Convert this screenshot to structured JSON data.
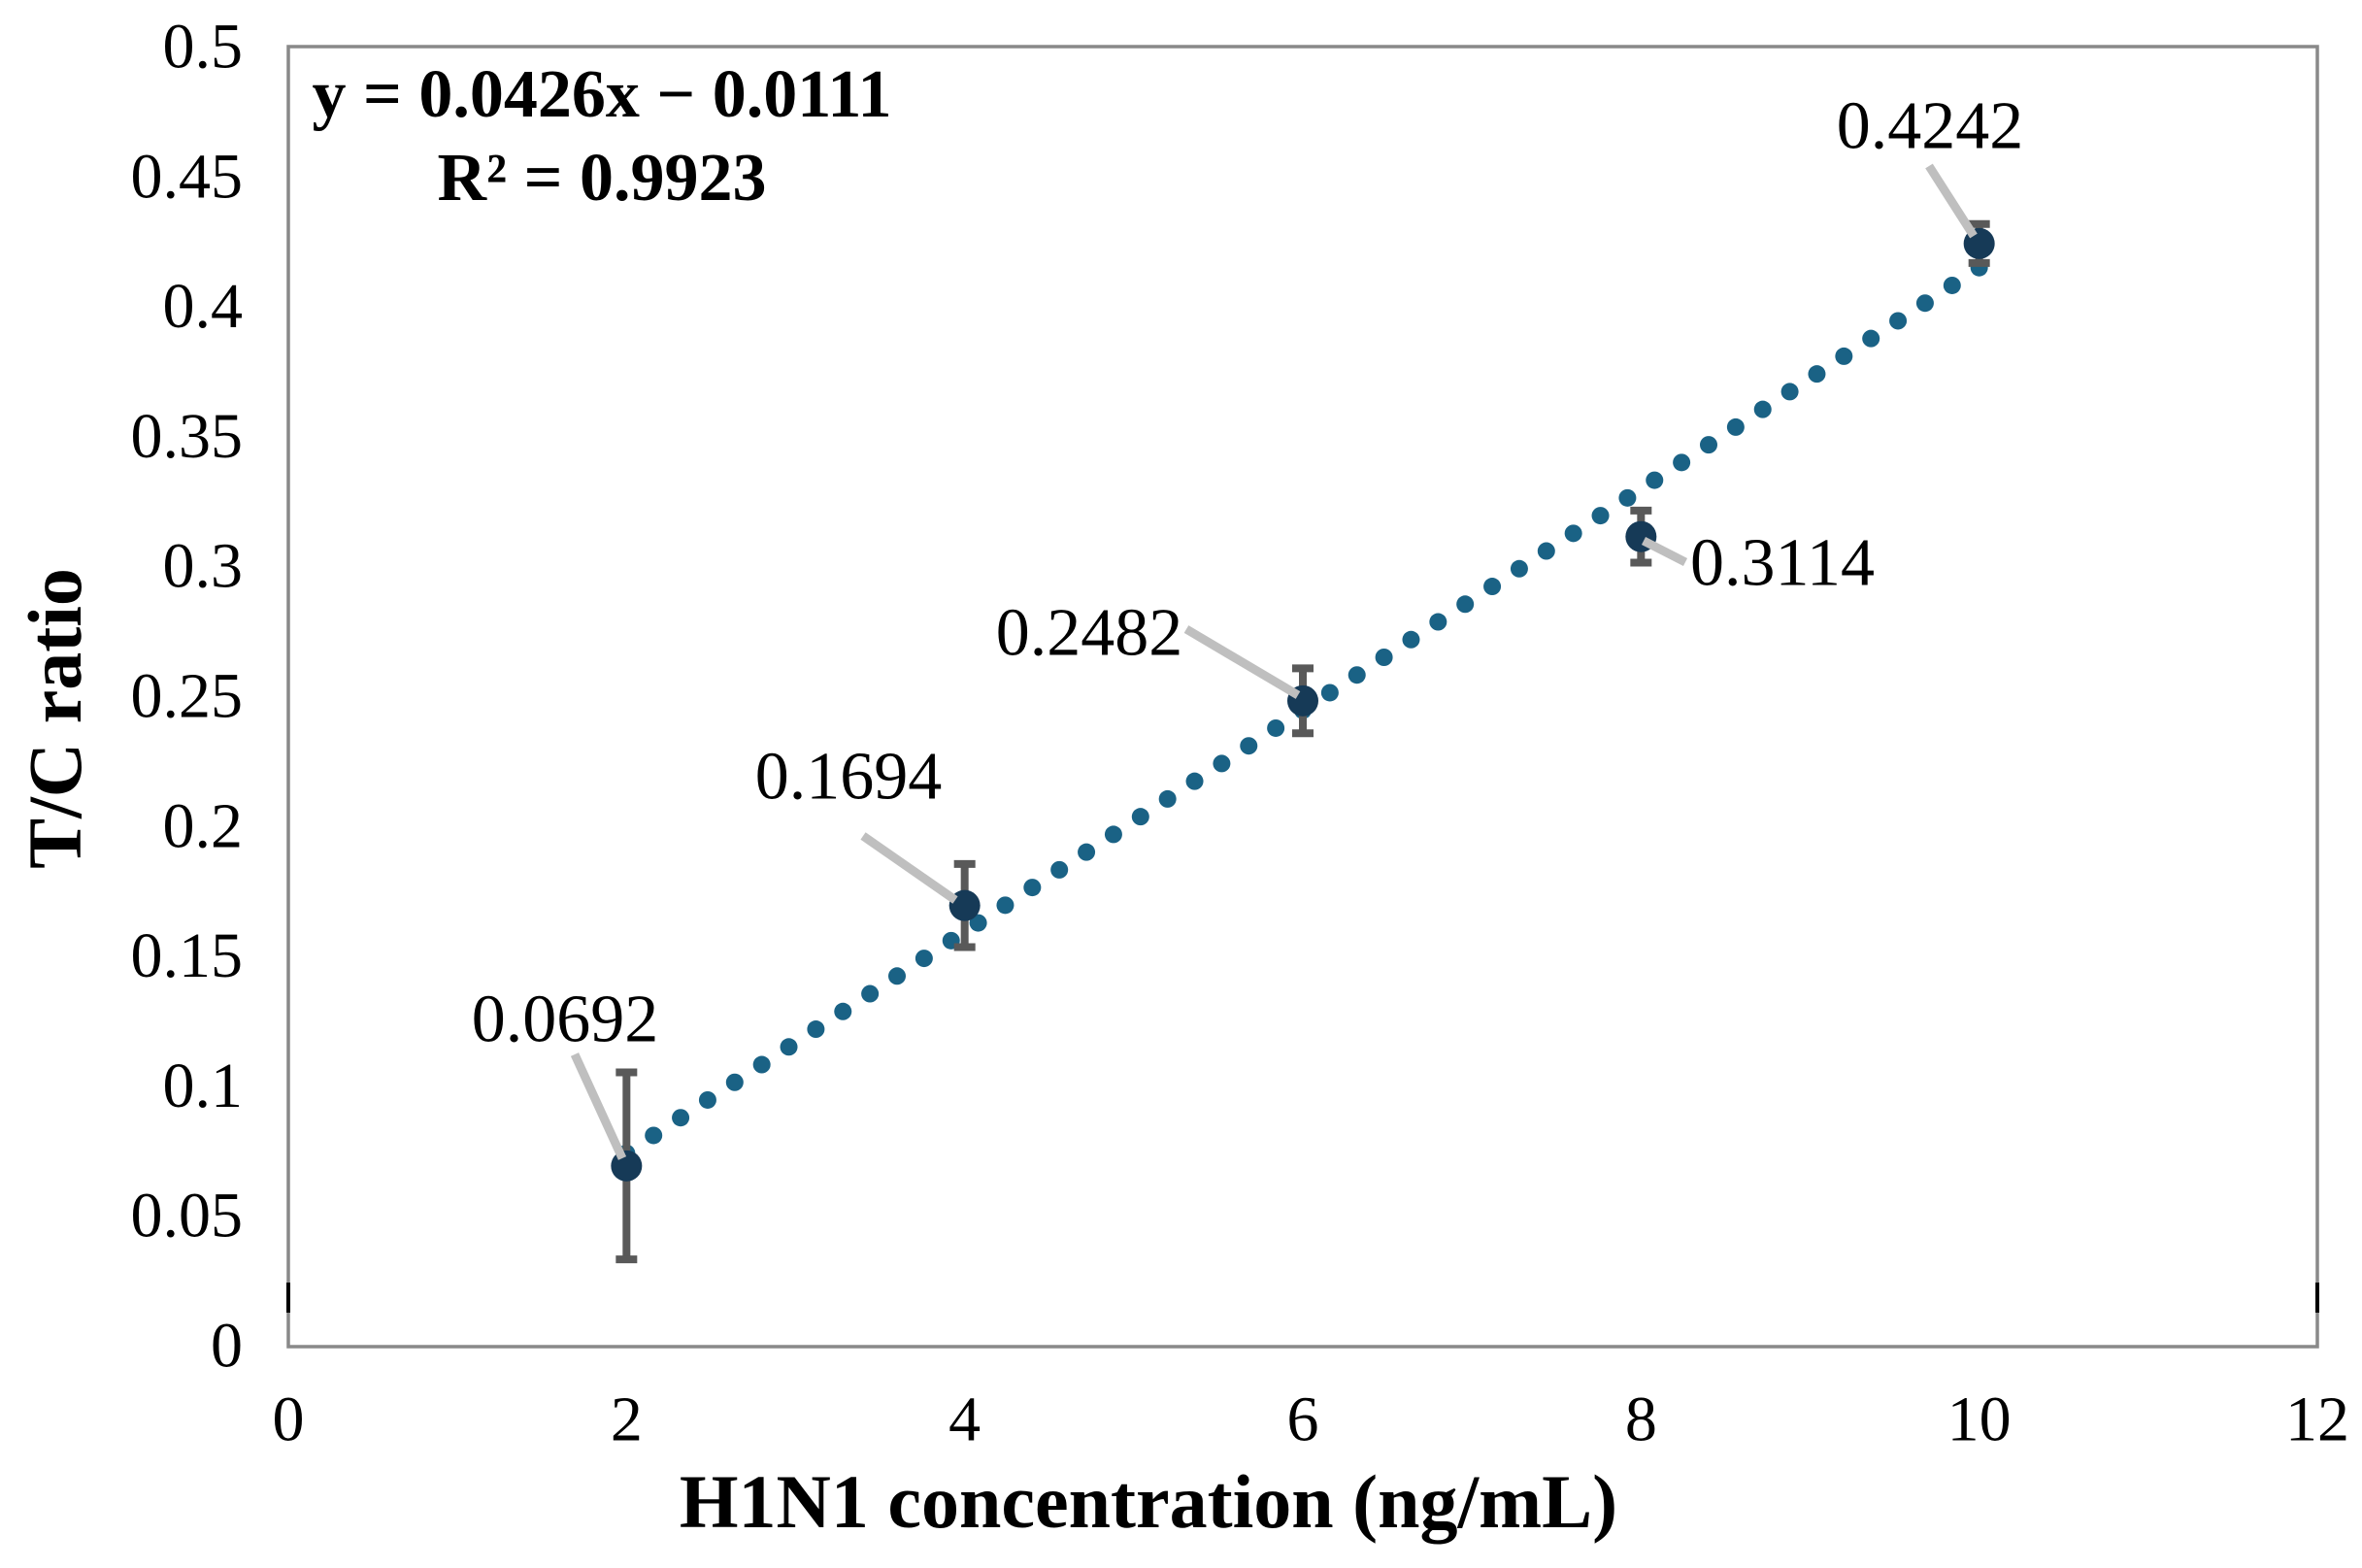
{
  "chart_data": {
    "type": "scatter",
    "title": "",
    "xlabel": "H1N1 concentration (ng/mL)",
    "ylabel": "T/C ratio",
    "xlim": [
      0,
      12
    ],
    "ylim": [
      0,
      0.5
    ],
    "xticks": [
      0,
      2,
      4,
      6,
      8,
      10,
      12
    ],
    "xtick_labels": [
      "0",
      "2",
      "4",
      "6",
      "8",
      "10",
      "12"
    ],
    "yticks": [
      0,
      0.05,
      0.1,
      0.15,
      0.2,
      0.25,
      0.3,
      0.35,
      0.4,
      0.45,
      0.5
    ],
    "ytick_labels": [
      "0",
      "0.05",
      "0.1",
      "0.15",
      "0.2",
      "0.25",
      "0.3",
      "0.35",
      "0.4",
      "0.45",
      "0.5"
    ],
    "grid": false,
    "legend": "none",
    "equation": {
      "line1": "y = 0.0426x − 0.0111",
      "line2": "R² = 0.9923"
    },
    "series": [
      {
        "name": "T/C ratio",
        "marker": "circle",
        "points": [
          {
            "x": 2,
            "y": 0.0692,
            "label": "0.0692",
            "error": 0.036
          },
          {
            "x": 4,
            "y": 0.1694,
            "label": "0.1694",
            "error": 0.016
          },
          {
            "x": 6,
            "y": 0.2482,
            "label": "0.2482",
            "error": 0.0125
          },
          {
            "x": 8,
            "y": 0.3114,
            "label": "0.3114",
            "error": 0.01
          },
          {
            "x": 10,
            "y": 0.4242,
            "label": "0.4242",
            "error": 0.0075
          }
        ]
      }
    ],
    "trendline": {
      "type": "linear",
      "slope": 0.0426,
      "intercept": -0.0111,
      "x_start": 2,
      "x_end": 10,
      "style": "dotted"
    },
    "colors": {
      "trend_dot": "#1A6285",
      "marker": "#163A57",
      "error_bar": "#595959",
      "leader_line": "#BFBFBF",
      "frame": "#898989",
      "edge_tick": "#000000",
      "text": "#000000"
    }
  }
}
